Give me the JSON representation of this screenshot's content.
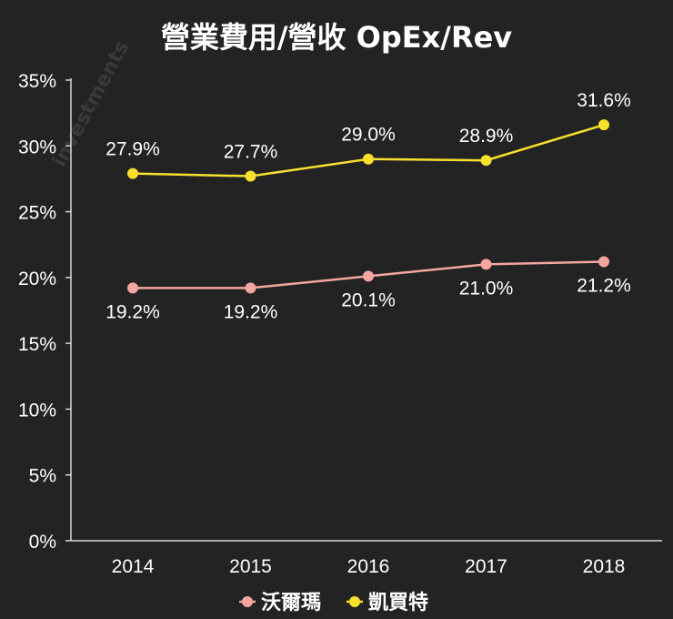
{
  "chart_data": {
    "type": "line",
    "title": "營業費用/營收 OpEx/Rev",
    "categories": [
      "2014",
      "2015",
      "2016",
      "2017",
      "2018"
    ],
    "ylim": [
      0,
      35
    ],
    "yticks": [
      0,
      5,
      10,
      15,
      20,
      25,
      30,
      35
    ],
    "ytick_labels": [
      "0%",
      "5%",
      "10%",
      "15%",
      "20%",
      "25%",
      "30%",
      "35%"
    ],
    "xlabel": "",
    "ylabel": "",
    "grid": false,
    "legend_position": "bottom",
    "series": [
      {
        "name": "沃爾瑪",
        "color": "#f4a6a0",
        "values": [
          19.2,
          19.2,
          20.1,
          21.0,
          21.2
        ],
        "labels": [
          "19.2%",
          "19.2%",
          "20.1%",
          "21.0%",
          "21.2%"
        ],
        "label_position": "below"
      },
      {
        "name": "凱買特",
        "color": "#f8e02e",
        "values": [
          27.9,
          27.7,
          29.0,
          28.9,
          31.6
        ],
        "labels": [
          "27.9%",
          "27.7%",
          "29.0%",
          "28.9%",
          "31.6%"
        ],
        "label_position": "above"
      }
    ]
  }
}
